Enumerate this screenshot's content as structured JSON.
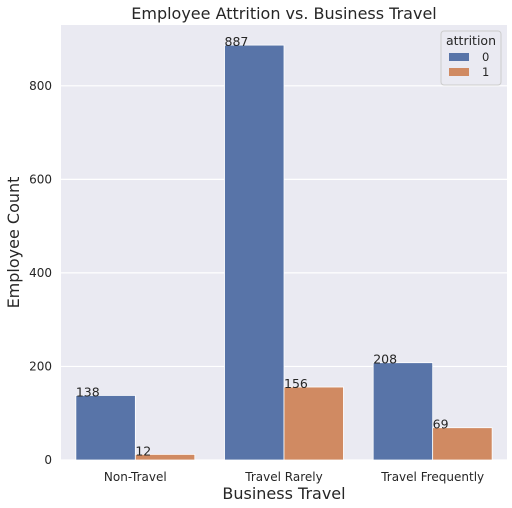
{
  "chart_data": {
    "type": "bar",
    "title": "Employee Attrition vs. Business Travel",
    "xlabel": "Business Travel",
    "ylabel": "Employee Count",
    "categories": [
      "Non-Travel",
      "Travel Rarely",
      "Travel Frequently"
    ],
    "series": [
      {
        "name": "0",
        "values": [
          138,
          887,
          208
        ],
        "color": "#5874a8"
      },
      {
        "name": "1",
        "values": [
          12,
          156,
          69
        ],
        "color": "#d08a62"
      }
    ],
    "ylim": [
      0,
      930
    ],
    "yticks": [
      0,
      200,
      400,
      600,
      800
    ],
    "grid": true,
    "legend": {
      "title": "attrition",
      "position": "top-right"
    },
    "background_color": "#eaeaf2"
  }
}
